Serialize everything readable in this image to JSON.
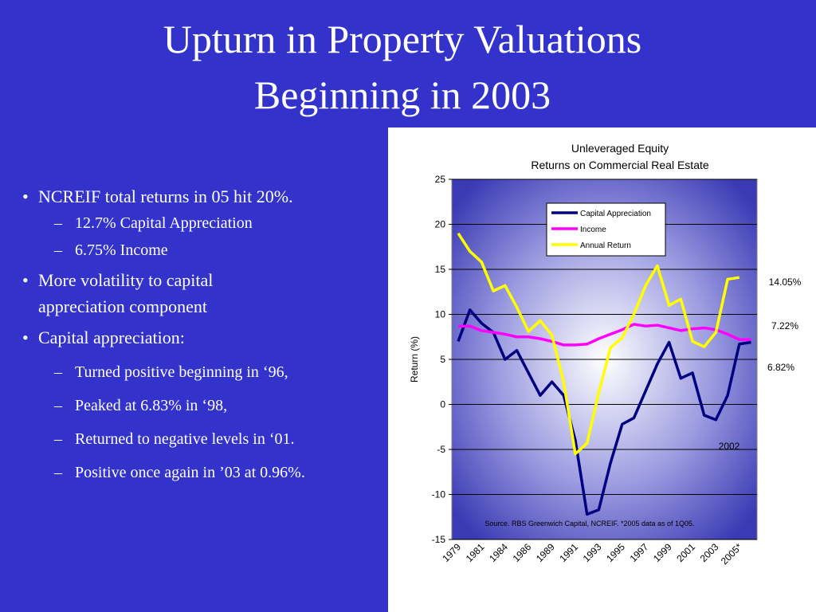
{
  "slide": {
    "title": [
      "Upturn in Property Valuations",
      "Beginning in 2003"
    ],
    "bullets": [
      {
        "text": "NCREIF total returns in 05 hit 20%.",
        "sub": [
          "12.7% Capital Appreciation",
          "6.75% Income"
        ]
      },
      {
        "text": "More volatility to capital appreciation component",
        "sub": []
      },
      {
        "text": "Capital appreciation:",
        "sub": [
          "Turned positive  beginning in ‘96,",
          "Peaked at 6.83% in ‘98,",
          "Returned to negative levels in ‘01.",
          "Positive once again in ’03 at 0.96%."
        ]
      }
    ]
  },
  "chart_data": {
    "type": "line",
    "title": [
      "Unleveraged Equity",
      "Returns on Commercial Real Estate"
    ],
    "y_label": "Return (%)",
    "categories": [
      "1979",
      null,
      "1981",
      null,
      "1984",
      null,
      "1986",
      null,
      "1989",
      null,
      "1991",
      null,
      "1993",
      null,
      "1995",
      null,
      "1997",
      null,
      "1999",
      null,
      "2001",
      null,
      "2003",
      null,
      "2005*",
      null
    ],
    "series": [
      {
        "name": "Capital Appreciation",
        "color": "#000080",
        "values": [
          7,
          10.5,
          9,
          8,
          5,
          6,
          3.5,
          1,
          2.5,
          1,
          -4,
          -12.2,
          -11.7,
          -6.5,
          -2.2,
          -1.5,
          1.5,
          4.5,
          6.9,
          2.9,
          3.5,
          -1.2,
          -1.7,
          1,
          6.7,
          6.9
        ]
      },
      {
        "name": "Income",
        "color": "#ff00ff",
        "values": [
          8.7,
          8.7,
          8.2,
          8,
          7.8,
          7.5,
          7.5,
          7.3,
          7,
          6.6,
          6.6,
          6.7,
          7.3,
          7.8,
          8.3,
          8.9,
          8.7,
          8.8,
          8.5,
          8.2,
          8.4,
          8.5,
          8.3,
          7.8,
          7.2,
          7.2
        ]
      },
      {
        "name": "Annual Return",
        "color": "#ffff00",
        "values": [
          19,
          17,
          15.8,
          12.6,
          13.2,
          10.8,
          8.1,
          9.3,
          7.7,
          2.5,
          -5.5,
          -4.3,
          1.3,
          6.3,
          7.4,
          10,
          13.2,
          15.4,
          11,
          11.7,
          7,
          6.4,
          8,
          13.9,
          14.1,
          null
        ]
      }
    ],
    "ylim": [
      -15,
      25
    ],
    "yticks": [
      -15,
      -10,
      -5,
      0,
      5,
      10,
      15,
      20,
      25
    ],
    "grid": true,
    "annotations": [
      "14.05%",
      "7.22%",
      "6.82%",
      "2002",
      "Source. RBS Greenwich Capital, NCREIF. *2005 data as of 1Q05."
    ]
  }
}
